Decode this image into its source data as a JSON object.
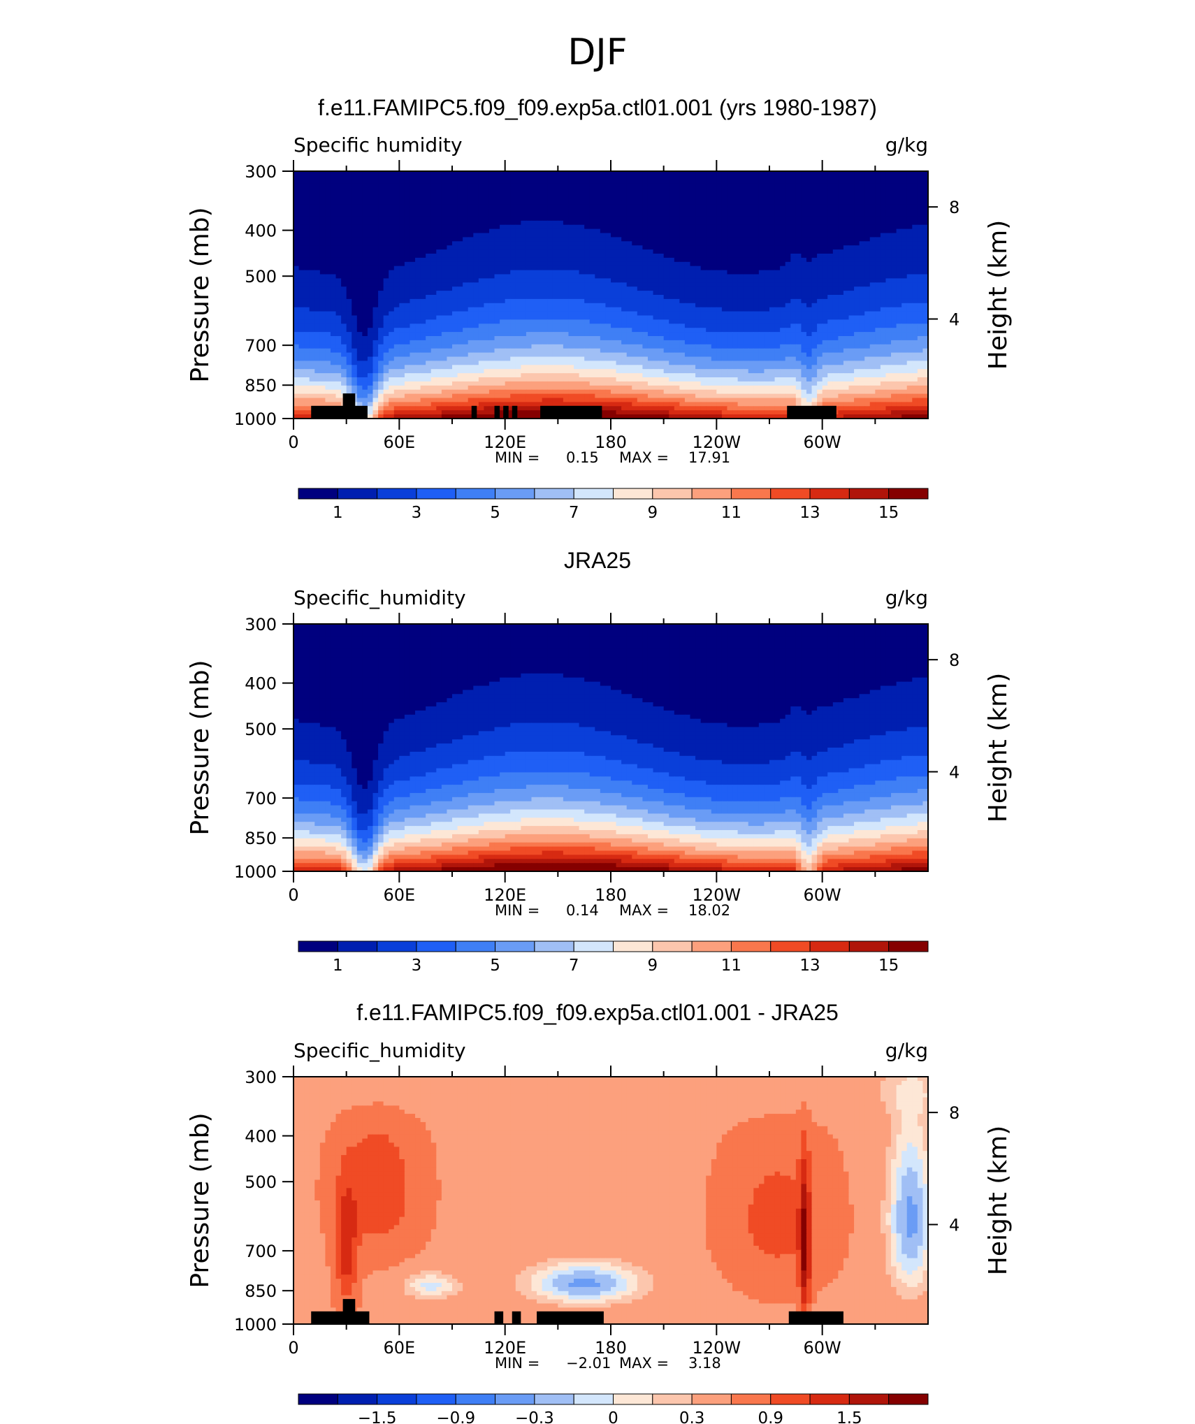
{
  "page": {
    "title": "DJF"
  },
  "panel_defaults": {
    "left_label": "Specific humidity",
    "units": "g/kg",
    "y_left_label": "Pressure (mb)",
    "y_right_label": "Height (km)"
  },
  "chart_data": [
    {
      "type": "heatmap",
      "title": "f.e11.FAMIPC5.f09_f09.exp5a.ctl01.001 (yrs 1980-1987)",
      "left_label": "Specific humidity",
      "units": "g/kg",
      "xlabel": "",
      "ylabel": "Pressure (mb)",
      "y2label": "Height (km)",
      "x_ticks": [
        "0",
        "60E",
        "120E",
        "180",
        "120W",
        "60W"
      ],
      "y_ticks": [
        "300",
        "400",
        "500",
        "700",
        "850",
        "1000"
      ],
      "y2_ticks": [
        "8",
        "4"
      ],
      "ylim": [
        1000,
        300
      ],
      "stats": {
        "min_label": "MIN =",
        "min": "0.15",
        "max_label": "MAX =",
        "max": "17.91"
      },
      "colorbar": {
        "levels": 16,
        "labels": [
          "1",
          "3",
          "5",
          "7",
          "9",
          "11",
          "13",
          "15"
        ]
      },
      "field": "mean"
    },
    {
      "type": "heatmap",
      "title": "JRA25",
      "left_label": "Specific_humidity",
      "units": "g/kg",
      "xlabel": "",
      "ylabel": "Pressure (mb)",
      "y2label": "Height (km)",
      "x_ticks": [
        "0",
        "60E",
        "120E",
        "180",
        "120W",
        "60W"
      ],
      "y_ticks": [
        "300",
        "400",
        "500",
        "700",
        "850",
        "1000"
      ],
      "y2_ticks": [
        "8",
        "4"
      ],
      "ylim": [
        1000,
        300
      ],
      "stats": {
        "min_label": "MIN =",
        "min": "0.14",
        "max_label": "MAX =",
        "max": "18.02"
      },
      "colorbar": {
        "levels": 16,
        "labels": [
          "1",
          "3",
          "5",
          "7",
          "9",
          "11",
          "13",
          "15"
        ]
      },
      "field": "mean"
    },
    {
      "type": "heatmap",
      "title": "f.e11.FAMIPC5.f09_f09.exp5a.ctl01.001 - JRA25",
      "left_label": "Specific_humidity",
      "units": "g/kg",
      "xlabel": "",
      "ylabel": "Pressure (mb)",
      "y2label": "Height (km)",
      "x_ticks": [
        "0",
        "60E",
        "120E",
        "180",
        "120W",
        "60W"
      ],
      "y_ticks": [
        "300",
        "400",
        "500",
        "700",
        "850",
        "1000"
      ],
      "y2_ticks": [
        "8",
        "4"
      ],
      "ylim": [
        1000,
        300
      ],
      "stats": {
        "min_label": "MIN =",
        "min": "−2.01",
        "max_label": "MAX =",
        "max": "3.18"
      },
      "colorbar": {
        "levels": 16,
        "labels": [
          "−1.5",
          "−0.9",
          "−0.3",
          "0",
          "0.3",
          "0.9",
          "1.5"
        ]
      },
      "field": "diff"
    }
  ],
  "palette": [
    "#00007f",
    "#001fb0",
    "#0a3fd9",
    "#1f5ff5",
    "#3f7ff5",
    "#6a9cf5",
    "#a0bff5",
    "#d3e6fc",
    "#fde7d6",
    "#fcc6ad",
    "#fca07d",
    "#f9774d",
    "#f04b25",
    "#d72a12",
    "#b0150a",
    "#850000"
  ]
}
